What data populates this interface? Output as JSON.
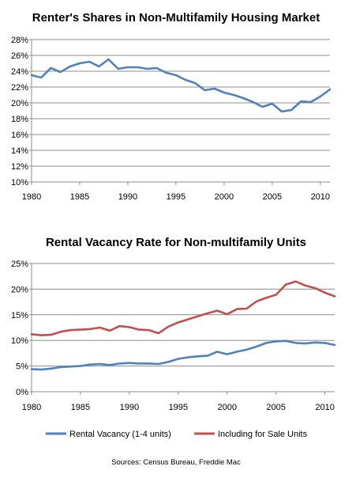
{
  "chart_data": [
    {
      "type": "line",
      "title": "Renter's Shares in Non-Multifamily Housing Market",
      "xlabel": "",
      "ylabel": "",
      "xlim": [
        1980,
        2011
      ],
      "ylim": [
        10,
        28
      ],
      "y_tick_step": 2,
      "y_tick_format": "percent",
      "x_ticks": [
        1980,
        1985,
        1990,
        1995,
        2000,
        2005,
        2010
      ],
      "x_tick_labels": [
        "1980",
        "1985",
        "1990",
        "1995",
        "2000",
        "2005",
        "2010"
      ],
      "y_tick_labels": [
        "10%",
        "12%",
        "14%",
        "16%",
        "18%",
        "20%",
        "22%",
        "24%",
        "26%",
        "28%"
      ],
      "grid": true,
      "x": [
        1980,
        1981,
        1982,
        1983,
        1984,
        1985,
        1986,
        1987,
        1988,
        1989,
        1990,
        1991,
        1992,
        1993,
        1994,
        1995,
        1996,
        1997,
        1998,
        1999,
        2000,
        2001,
        2002,
        2003,
        2004,
        2005,
        2006,
        2007,
        2008,
        2009,
        2010,
        2011
      ],
      "series": [
        {
          "color": "#4f81bd",
          "values": [
            23.5,
            23.2,
            24.4,
            23.9,
            24.6,
            25.0,
            25.2,
            24.6,
            25.5,
            24.3,
            24.5,
            24.5,
            24.3,
            24.4,
            23.8,
            23.5,
            22.9,
            22.5,
            21.6,
            21.8,
            21.3,
            21.0,
            20.6,
            20.1,
            19.5,
            19.9,
            18.9,
            19.1,
            20.2,
            20.1,
            20.8,
            21.7
          ]
        }
      ]
    },
    {
      "type": "line",
      "title": "Rental Vacancy Rate for Non-multifamily Units",
      "xlabel": "",
      "ylabel": "",
      "xlim": [
        1980,
        2011
      ],
      "ylim": [
        0,
        25
      ],
      "y_tick_step": 5,
      "y_tick_format": "percent",
      "x_ticks": [
        1980,
        1985,
        1990,
        1995,
        2000,
        2005,
        2010
      ],
      "x_tick_labels": [
        "1980",
        "1985",
        "1990",
        "1995",
        "2000",
        "2005",
        "2010"
      ],
      "y_tick_labels": [
        "0%",
        "5%",
        "10%",
        "15%",
        "20%",
        "25%"
      ],
      "grid": true,
      "legend": "bottom",
      "x": [
        1980,
        1981,
        1982,
        1983,
        1984,
        1985,
        1986,
        1987,
        1988,
        1989,
        1990,
        1991,
        1992,
        1993,
        1994,
        1995,
        1996,
        1997,
        1998,
        1999,
        2000,
        2001,
        2002,
        2003,
        2004,
        2005,
        2006,
        2007,
        2008,
        2009,
        2010,
        2011
      ],
      "series": [
        {
          "name": "Rental Vacancy (1-4 units)",
          "color": "#4f81bd",
          "values": [
            4.4,
            4.3,
            4.5,
            4.8,
            4.9,
            5.0,
            5.3,
            5.4,
            5.2,
            5.5,
            5.6,
            5.5,
            5.5,
            5.4,
            5.8,
            6.4,
            6.7,
            6.9,
            7.0,
            7.8,
            7.3,
            7.8,
            8.2,
            8.8,
            9.5,
            9.8,
            9.9,
            9.5,
            9.4,
            9.6,
            9.5,
            9.1
          ]
        },
        {
          "name": "Including for Sale Units",
          "color": "#c0504d",
          "values": [
            11.2,
            11.0,
            11.1,
            11.7,
            12.0,
            12.1,
            12.2,
            12.5,
            11.9,
            12.8,
            12.6,
            12.1,
            12.0,
            11.4,
            12.7,
            13.5,
            14.1,
            14.7,
            15.3,
            15.8,
            15.1,
            16.1,
            16.2,
            17.6,
            18.3,
            18.9,
            20.9,
            21.5,
            20.7,
            20.2,
            19.3,
            18.6
          ]
        }
      ]
    }
  ],
  "footer": {
    "source": "Sources: Census Bureau, Freddie Mac"
  }
}
